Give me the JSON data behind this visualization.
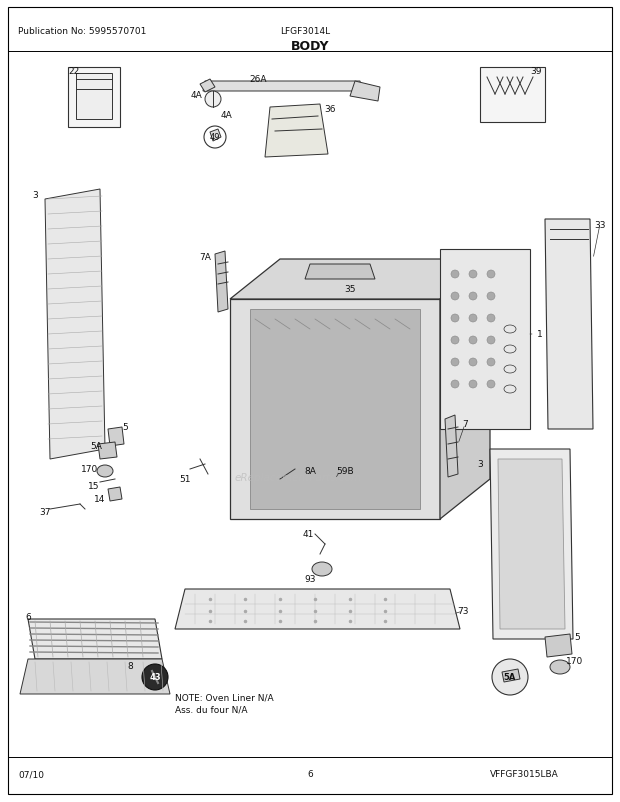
{
  "pub_no": "Publication No: 5995570701",
  "model": "LFGF3014L",
  "title": "BODY",
  "date": "07/10",
  "page": "6",
  "vffgf": "VFFGF3015LBA",
  "note_line1": "NOTE: Oven Liner N/A",
  "note_line2": "Ass. du four N/A",
  "bg_color": "#ffffff",
  "fig_width": 6.2,
  "fig_height": 8.03,
  "dpi": 100
}
